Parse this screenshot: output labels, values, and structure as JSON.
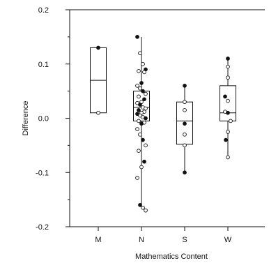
{
  "chart_data": {
    "type": "box",
    "title": "",
    "xlabel": "Mathematics Content",
    "ylabel": "Difference",
    "ylim": [
      -0.2,
      0.2
    ],
    "yticks": [
      0.2,
      0.1,
      0.0,
      -0.1,
      -0.2
    ],
    "ytick_labels": [
      "0.2",
      "0.1",
      "0.0",
      "-0.1",
      "-0.2"
    ],
    "categories": [
      "M",
      "N",
      "S",
      "W"
    ],
    "boxes": [
      {
        "category": "M",
        "q1": 0.01,
        "median": 0.07,
        "q3": 0.13,
        "whisker_low": 0.01,
        "whisker_high": 0.13
      },
      {
        "category": "N",
        "q1": -0.005,
        "median": 0.02,
        "q3": 0.05,
        "whisker_low": -0.16,
        "whisker_high": 0.15
      },
      {
        "category": "S",
        "q1": -0.048,
        "median": -0.005,
        "q3": 0.03,
        "whisker_low": -0.1,
        "whisker_high": 0.06
      },
      {
        "category": "W",
        "q1": -0.005,
        "median": 0.01,
        "q3": 0.06,
        "whisker_low": -0.072,
        "whisker_high": 0.11
      }
    ],
    "points": [
      {
        "category": "M",
        "values": [
          0.13,
          0.01
        ]
      },
      {
        "category": "N",
        "values": [
          0.15,
          0.12,
          0.1,
          0.09,
          0.087,
          0.085,
          0.065,
          0.06,
          0.055,
          0.05,
          0.045,
          0.04,
          0.035,
          0.03,
          0.028,
          0.025,
          0.02,
          0.018,
          0.015,
          0.012,
          0.01,
          0.008,
          0.005,
          0.002,
          0.0,
          -0.005,
          -0.008,
          -0.01,
          -0.02,
          -0.03,
          -0.04,
          -0.05,
          -0.06,
          -0.08,
          -0.09,
          -0.11,
          -0.16,
          -0.165,
          -0.17
        ]
      },
      {
        "category": "S",
        "values": [
          0.06,
          0.03,
          0.015,
          -0.01,
          -0.03,
          -0.05,
          -0.1
        ]
      },
      {
        "category": "W",
        "values": [
          0.11,
          0.095,
          0.075,
          0.04,
          0.032,
          0.012,
          0.01,
          -0.005,
          -0.025,
          -0.04,
          -0.072
        ]
      }
    ],
    "grid": false,
    "legend": "none"
  }
}
